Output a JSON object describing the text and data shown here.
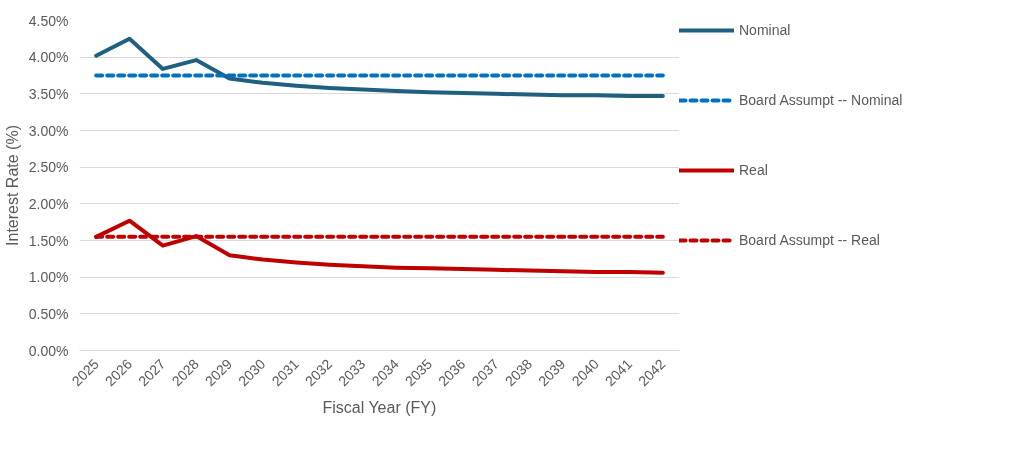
{
  "chart_data": {
    "type": "line",
    "xlabel": "Fiscal Year (FY)",
    "ylabel": "Interest Rate (%)",
    "categories": [
      "2025",
      "2026",
      "2027",
      "2028",
      "2029",
      "2030",
      "2031",
      "2032",
      "2033",
      "2034",
      "2035",
      "2036",
      "2037",
      "2038",
      "2039",
      "2040",
      "2041",
      "2042"
    ],
    "series": [
      {
        "name": "Nominal",
        "color": "#1f5f80",
        "line_style": "solid",
        "values": [
          4.02,
          4.25,
          3.84,
          3.96,
          3.71,
          3.65,
          3.61,
          3.58,
          3.56,
          3.54,
          3.52,
          3.51,
          3.5,
          3.49,
          3.48,
          3.48,
          3.47,
          3.47
        ]
      },
      {
        "name": "Board Assumpt -- Nominal",
        "color": "#0070c0",
        "line_style": "dashed",
        "values": [
          3.75,
          3.75,
          3.75,
          3.75,
          3.75,
          3.75,
          3.75,
          3.75,
          3.75,
          3.75,
          3.75,
          3.75,
          3.75,
          3.75,
          3.75,
          3.75,
          3.75,
          3.75
        ]
      },
      {
        "name": "Real",
        "color": "#c00000",
        "line_style": "solid",
        "values": [
          1.55,
          1.77,
          1.43,
          1.56,
          1.3,
          1.24,
          1.2,
          1.17,
          1.15,
          1.13,
          1.12,
          1.11,
          1.1,
          1.09,
          1.08,
          1.07,
          1.07,
          1.06
        ]
      },
      {
        "name": "Board Assumpt -- Real",
        "color": "#c00000",
        "line_style": "dashed",
        "values": [
          1.55,
          1.55,
          1.55,
          1.55,
          1.55,
          1.55,
          1.55,
          1.55,
          1.55,
          1.55,
          1.55,
          1.55,
          1.55,
          1.55,
          1.55,
          1.55,
          1.55,
          1.55
        ]
      }
    ],
    "ylim": [
      0,
      4.5
    ],
    "yticks": [
      {
        "value": 0,
        "label": "0.00%"
      },
      {
        "value": 0.5,
        "label": "0.50%"
      },
      {
        "value": 1.0,
        "label": "1.00%"
      },
      {
        "value": 1.5,
        "label": "1.50%"
      },
      {
        "value": 2.0,
        "label": "2.00%"
      },
      {
        "value": 2.5,
        "label": "2.50%"
      },
      {
        "value": 3.0,
        "label": "3.00%"
      },
      {
        "value": 3.5,
        "label": "3.50%"
      },
      {
        "value": 4.0,
        "label": "4.00%"
      },
      {
        "value": 4.5,
        "label": "4.50%"
      }
    ],
    "grid": "y",
    "legend": "right"
  }
}
